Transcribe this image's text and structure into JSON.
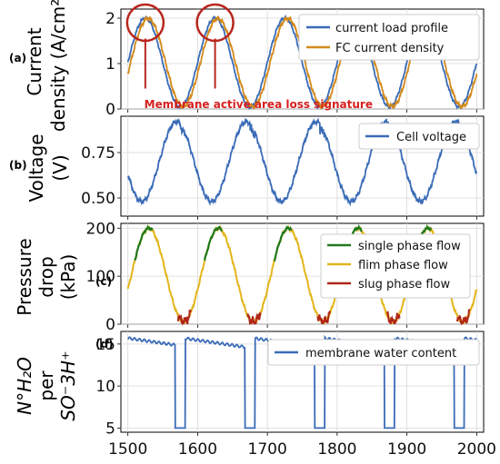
{
  "chart_data": [
    {
      "type": "line",
      "panel_label": "(a)",
      "ylabel": "Current density (A/cm²)",
      "ylim": [
        0,
        2.2
      ],
      "yticks": [
        "0",
        "1",
        "2"
      ],
      "legend_position": "top-right",
      "series": [
        {
          "name": "current load profile",
          "color": "#3a6bb7",
          "period": 100,
          "min": 0.05,
          "max": 2.0,
          "peak_at": 1725
        },
        {
          "name": "FC current density",
          "color": "#d38a1b",
          "period": 100,
          "min": 0.05,
          "max": 2.0,
          "peak_at": 1725
        }
      ],
      "annotation": "Membrane active area loss signature",
      "circled_x": [
        1525,
        1625
      ]
    },
    {
      "type": "line",
      "panel_label": "(b)",
      "ylabel": "Voltage (V)",
      "ylim": [
        0.4,
        0.95
      ],
      "yticks": [
        "0.50",
        "0.75"
      ],
      "legend_position": "top-right",
      "series": [
        {
          "name": "Cell voltage",
          "color": "#3a6bb7",
          "period": 100,
          "min": 0.48,
          "max": 0.92,
          "peak_at": 1570
        }
      ]
    },
    {
      "type": "line",
      "panel_label": "(c)",
      "ylabel": "Pressure drop (kPa)",
      "ylim": [
        0,
        210
      ],
      "yticks": [
        "0",
        "100",
        "200"
      ],
      "legend_position": "right",
      "series": [
        {
          "name": "single phase flow",
          "color": "#1f7a1f",
          "period": 100,
          "min": 5,
          "max": 200,
          "peak_at": 1530
        },
        {
          "name": "flim phase flow",
          "color": "#e3b51a",
          "period": 100,
          "min": 5,
          "max": 200,
          "peak_at": 1530
        },
        {
          "name": "slug phase flow",
          "color": "#b0261a",
          "period": 100,
          "min": 5,
          "max": 200,
          "peak_at": 1530
        }
      ]
    },
    {
      "type": "line",
      "panel_label": "(d)",
      "ylabel": "N°H₂O per SO⁻3H⁺",
      "ylim": [
        4.5,
        16.5
      ],
      "yticks": [
        "5",
        "10",
        "15"
      ],
      "legend_position": "top-right",
      "series": [
        {
          "name": "membrane water content",
          "color": "#3a6bb7",
          "high": 15.3,
          "low": 14.1,
          "dips": [
            [
              1570,
              1580
            ],
            [
              1670,
              1680
            ],
            [
              1770,
              1780
            ],
            [
              1870,
              1880
            ],
            [
              1970,
              1980
            ]
          ],
          "dip_value": 5
        }
      ]
    }
  ],
  "xaxis": {
    "xlim": [
      1490,
      2010
    ],
    "xticks": [
      "1500",
      "1600",
      "1700",
      "1800",
      "1900",
      "2000"
    ]
  }
}
